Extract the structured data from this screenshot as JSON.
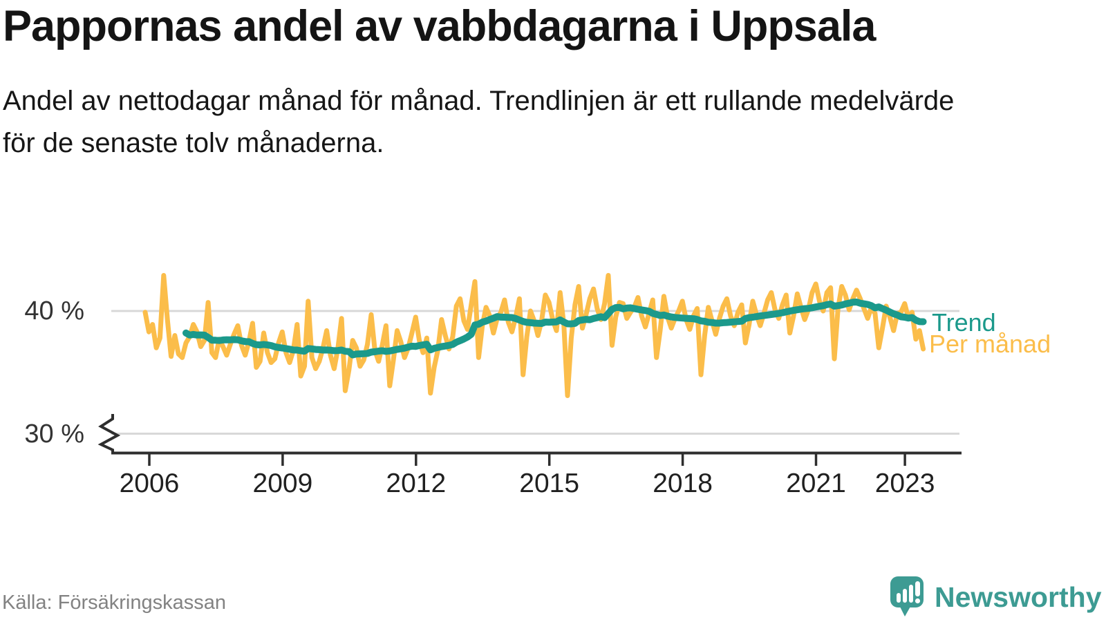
{
  "page": {
    "background": "#FFFFFF"
  },
  "header": {
    "title": "Pappornas andel av vabbdagarna i Uppsala",
    "subtitle": "Andel av nettodagar månad för månad. Trendlinjen är ett rullande medelvärde för de senaste tolv månaderna."
  },
  "footer": {
    "source": "Källa: Försäkringskassan",
    "brand_name": "Newsworthy"
  },
  "colors": {
    "monthly_line": "#FBBD4A",
    "trend_line": "#1B998B",
    "grid": "#D8D8D8",
    "axis": "#2E2E2E",
    "tick_label": "#202020",
    "y_label": "#333333",
    "muted_text": "#828282",
    "brand": "#3D9B93"
  },
  "chart_data": {
    "type": "line",
    "title": "Pappornas andel av vabbdagarna i Uppsala",
    "unit": "%",
    "frequency": "monthly",
    "start": "2006-01",
    "end": "2023-07",
    "y_axis": {
      "ticks": [
        {
          "value": 40,
          "label": "40 %"
        },
        {
          "value": 30,
          "label": "30 %"
        }
      ],
      "broken_axis": true,
      "range_shown": [
        30,
        43.5
      ]
    },
    "x_axis": {
      "ticks": [
        {
          "year": 2006,
          "label": "2006"
        },
        {
          "year": 2009,
          "label": "2009"
        },
        {
          "year": 2012,
          "label": "2012"
        },
        {
          "year": 2015,
          "label": "2015"
        },
        {
          "year": 2018,
          "label": "2018"
        },
        {
          "year": 2021,
          "label": "2021"
        },
        {
          "year": 2023,
          "label": "2023"
        }
      ]
    },
    "grid": "horizontal-only",
    "legend_position": "right-of-line-end",
    "series": [
      {
        "name": "Per månad",
        "role": "monthly-values",
        "color": "#FBBD4A",
        "values": [
          39.9,
          38.3,
          38.9,
          37.0,
          37.8,
          42.9,
          39.3,
          36.3,
          38.0,
          36.5,
          36.2,
          37.4,
          37.9,
          38.9,
          38.3,
          37.1,
          37.6,
          40.7,
          36.6,
          36.2,
          37.7,
          37.1,
          36.4,
          37.3,
          38.1,
          38.8,
          37.2,
          36.4,
          37.5,
          39.0,
          35.4,
          35.9,
          38.2,
          36.6,
          35.8,
          36.1,
          37.4,
          38.3,
          36.6,
          35.8,
          36.8,
          38.9,
          34.7,
          35.5,
          40.8,
          36.2,
          35.3,
          35.9,
          37.0,
          38.4,
          36.4,
          35.3,
          36.9,
          39.4,
          33.5,
          35.2,
          37.6,
          37.0,
          35.5,
          36.0,
          37.3,
          39.7,
          36.8,
          35.9,
          37.2,
          38.8,
          33.9,
          36.0,
          38.4,
          37.5,
          36.2,
          37.0,
          38.2,
          39.5,
          37.6,
          36.6,
          37.8,
          33.3,
          35.4,
          36.8,
          39.3,
          38.0,
          36.9,
          37.9,
          40.4,
          41.0,
          39.2,
          38.5,
          40.5,
          42.4,
          36.2,
          38.8,
          40.3,
          39.6,
          38.2,
          39.4,
          39.9,
          40.9,
          39.1,
          38.3,
          39.5,
          41.0,
          34.8,
          37.9,
          40.0,
          39.2,
          38.0,
          39.2,
          41.3,
          40.7,
          39.3,
          38.4,
          41.5,
          38.9,
          33.1,
          37.8,
          40.5,
          42.0,
          38.6,
          39.7,
          41.0,
          41.8,
          40.2,
          39.3,
          40.6,
          42.9,
          37.2,
          39.5,
          40.7,
          40.6,
          39.4,
          39.9,
          40.3,
          41.1,
          39.6,
          38.7,
          39.8,
          40.9,
          36.2,
          38.4,
          41.2,
          39.5,
          38.6,
          39.4,
          40.0,
          40.8,
          39.3,
          38.5,
          39.6,
          40.2,
          34.8,
          38.0,
          40.3,
          39.2,
          38.1,
          39.4,
          40.4,
          41.0,
          39.6,
          38.8,
          39.9,
          40.5,
          37.4,
          38.9,
          40.8,
          39.7,
          38.8,
          39.8,
          40.9,
          41.5,
          40.1,
          39.4,
          40.5,
          41.3,
          38.2,
          39.6,
          41.4,
          40.3,
          39.3,
          40.1,
          41.5,
          42.2,
          40.8,
          40.0,
          41.5,
          41.9,
          36.1,
          40.2,
          42.0,
          41.3,
          40.1,
          41.0,
          41.7,
          41.0,
          40.2,
          39.4,
          40.3,
          39.8,
          37.0,
          38.6,
          40.4,
          39.5,
          38.4,
          39.8,
          39.9,
          40.6,
          39.4,
          39.9,
          37.7,
          38.4,
          36.9
        ]
      },
      {
        "name": "Trend",
        "role": "trend",
        "color": "#1B998B",
        "derived": "rolling-mean-12-months-of-Per-månad"
      }
    ]
  }
}
